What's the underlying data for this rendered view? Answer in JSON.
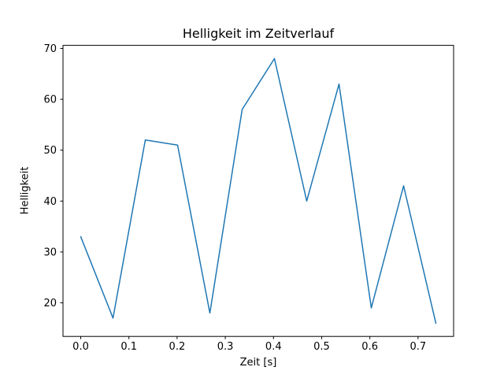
{
  "chart_data": {
    "type": "line",
    "title": "Helligkeit im Zeitverlauf",
    "xlabel": "Zeit [s]",
    "ylabel": "Helligkeit",
    "line_color": "#1f77b4",
    "axis_color": "#000000",
    "background_color": "#ffffff",
    "grid": false,
    "legend": null,
    "x": [
      0.0,
      0.067,
      0.134,
      0.201,
      0.268,
      0.335,
      0.402,
      0.469,
      0.536,
      0.603,
      0.67,
      0.737
    ],
    "y": [
      33,
      17,
      52,
      51,
      18,
      58,
      68,
      40,
      63,
      19,
      43,
      16
    ],
    "xticks": [
      0.0,
      0.1,
      0.2,
      0.3,
      0.4,
      0.5,
      0.6,
      0.7
    ],
    "xtick_labels": [
      "0.0",
      "0.1",
      "0.2",
      "0.3",
      "0.4",
      "0.5",
      "0.6",
      "0.7"
    ],
    "yticks": [
      20,
      30,
      40,
      50,
      60,
      70
    ],
    "ytick_labels": [
      "20",
      "30",
      "40",
      "50",
      "60",
      "70"
    ],
    "xlim": [
      -0.0368,
      0.7738
    ],
    "ylim": [
      13.4,
      70.6
    ]
  }
}
